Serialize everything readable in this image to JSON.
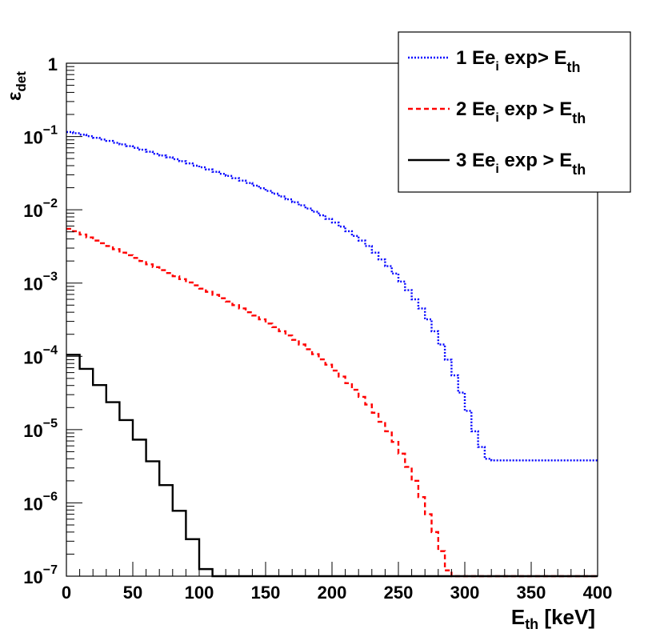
{
  "chart_data": {
    "type": "line",
    "style": "step-histogram",
    "y_scale": "log",
    "xlim": [
      0,
      400
    ],
    "ylim": [
      1e-07,
      1
    ],
    "grid": false,
    "legend_placement": "top-right",
    "xlabel": {
      "main": "E",
      "sub": "th",
      "unit": " [keV]"
    },
    "ylabel": {
      "main": "ε",
      "sub": "det"
    },
    "x_ticks": [
      0,
      50,
      100,
      150,
      200,
      250,
      300,
      350,
      400
    ],
    "x_tick_labels": [
      "0",
      "50",
      "100",
      "150",
      "200",
      "250",
      "300",
      "350",
      "400"
    ],
    "y_ticks": [
      {
        "value": 1,
        "base": "1",
        "exp": ""
      },
      {
        "value": 0.1,
        "base": "10",
        "exp": "−1"
      },
      {
        "value": 0.01,
        "base": "10",
        "exp": "−2"
      },
      {
        "value": 0.001,
        "base": "10",
        "exp": "−3"
      },
      {
        "value": 0.0001,
        "base": "10",
        "exp": "−4"
      },
      {
        "value": 1e-05,
        "base": "10",
        "exp": "−5"
      },
      {
        "value": 1e-06,
        "base": "10",
        "exp": "−6"
      },
      {
        "value": 1e-07,
        "base": "10",
        "exp": "−7"
      }
    ],
    "series": [
      {
        "name": {
          "pre": "1 Ee",
          "sub": "i",
          "mid": " exp> E",
          "sub2": "th"
        },
        "color": "#0000ff",
        "dash": "2,2",
        "bin_width": 5,
        "x_start": 0,
        "values": [
          0.115,
          0.111,
          0.106,
          0.101,
          0.096,
          0.091,
          0.087,
          0.082,
          0.078,
          0.074,
          0.07,
          0.066,
          0.062,
          0.058,
          0.055,
          0.052,
          0.049,
          0.046,
          0.043,
          0.04,
          0.038,
          0.0355,
          0.033,
          0.031,
          0.029,
          0.027,
          0.025,
          0.0232,
          0.0214,
          0.0197,
          0.0181,
          0.0166,
          0.0152,
          0.0139,
          0.0127,
          0.0115,
          0.0104,
          0.0094,
          0.0084,
          0.0075,
          0.0067,
          0.0059,
          0.0051,
          0.0044,
          0.0038,
          0.0032,
          0.0026,
          0.0021,
          0.0017,
          0.00135,
          0.00105,
          0.0008,
          0.0006,
          0.00045,
          0.00032,
          0.00022,
          0.000145,
          9e-05,
          5.5e-05,
          3.2e-05,
          1.8e-05,
          9.5e-06,
          5.8e-06,
          4e-06,
          3.8e-06,
          3.8e-06,
          3.8e-06,
          3.8e-06,
          3.8e-06,
          3.8e-06,
          3.8e-06,
          3.8e-06,
          3.8e-06,
          3.8e-06,
          3.8e-06,
          3.8e-06,
          3.8e-06,
          3.8e-06,
          3.8e-06,
          3.8e-06
        ]
      },
      {
        "name": {
          "pre": "2 Ee",
          "sub": "i",
          "mid": " exp > E",
          "sub2": "th"
        },
        "color": "#ff0000",
        "dash": "6,4",
        "bin_width": 5,
        "x_start": 0,
        "values": [
          0.0055,
          0.0051,
          0.0046,
          0.0042,
          0.0038,
          0.0035,
          0.0032,
          0.0029,
          0.0026,
          0.0024,
          0.0022,
          0.002,
          0.0018,
          0.00165,
          0.0015,
          0.00137,
          0.00124,
          0.00113,
          0.00102,
          0.00093,
          0.00084,
          0.00076,
          0.00069,
          0.00062,
          0.00056,
          0.0005,
          0.00045,
          0.0004,
          0.00036,
          0.00032,
          0.00028,
          0.00025,
          0.00022,
          0.000193,
          0.000168,
          0.000145,
          0.000125,
          0.000107,
          9.1e-05,
          7.7e-05,
          6.4e-05,
          5.3e-05,
          4.3e-05,
          3.5e-05,
          2.8e-05,
          2.2e-05,
          1.7e-05,
          1.28e-05,
          9.5e-06,
          6.8e-06,
          4.7e-06,
          3.1e-06,
          2e-06,
          1.2e-06,
          7e-07,
          4e-07,
          2.2e-07,
          1.2e-07,
          5e-08,
          5e-08,
          5e-08,
          5e-08,
          5e-08,
          5e-08,
          5e-08,
          5e-08,
          5e-08,
          5e-08,
          5e-08,
          5e-08,
          5e-08,
          5e-08,
          5e-08,
          5e-08,
          5e-08,
          5e-08,
          5e-08,
          5e-08,
          5e-08,
          5e-08
        ]
      },
      {
        "name": {
          "pre": "3 Ee",
          "sub": "i",
          "mid": " exp > E",
          "sub2": "th"
        },
        "color": "#000000",
        "dash": "",
        "bin_width": 10,
        "x_start": 0,
        "values": [
          0.000105,
          6.75e-05,
          4.05e-05,
          2.37e-05,
          1.35e-05,
          7.3e-06,
          3.7e-06,
          1.75e-06,
          7.8e-07,
          3.2e-07,
          1.25e-07,
          5e-08,
          5e-08,
          5e-08,
          5e-08,
          5e-08,
          5e-08,
          5e-08,
          5e-08,
          5e-08,
          5e-08,
          5e-08,
          5e-08,
          5e-08,
          5e-08,
          5e-08,
          5e-08,
          5e-08,
          5e-08,
          5e-08,
          5e-08,
          5e-08,
          5e-08,
          5e-08,
          5e-08,
          5e-08,
          5e-08,
          5e-08,
          5e-08,
          5e-08
        ]
      }
    ]
  }
}
